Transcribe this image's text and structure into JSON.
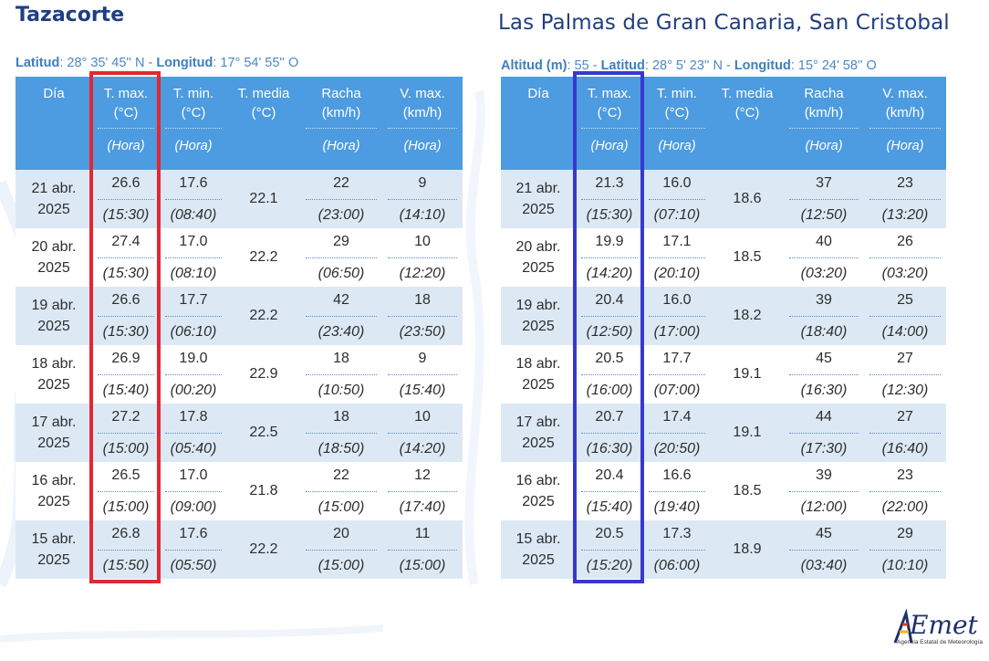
{
  "colors": {
    "title": "#1e3f82",
    "header_bg": "#4d9be0",
    "row_alt_bg": "#dce9f5",
    "highlight_left": "#e32733",
    "highlight_right": "#3838cf"
  },
  "header_labels": {
    "dia": "Día",
    "tmax_1": "T. max.",
    "tmax_2": "(°C)",
    "tmin_1": "T. min.",
    "tmin_2": "(°C)",
    "tmed_1": "T. media",
    "tmed_2": "(°C)",
    "racha_1": "Racha",
    "racha_2": "(km/h)",
    "vmax_1": "V. max.",
    "vmax_2": "(km/h)",
    "hora": "(Hora)"
  },
  "stations": [
    {
      "name": "Tazacorte",
      "coords_lat_label": "Latitud",
      "coords_lat": ": 28° 35' 45'' N - ",
      "coords_lon_label": "Longitud",
      "coords_lon": ": 17° 54' 55'' O",
      "rows": [
        {
          "dia1": "21 abr.",
          "dia2": "2025",
          "tmax": "26.6",
          "tmax_h": "(15:30)",
          "tmin": "17.6",
          "tmin_h": "(08:40)",
          "tmed": "22.1",
          "racha": "22",
          "racha_h": "(23:00)",
          "vmax": "9",
          "vmax_h": "(14:10)"
        },
        {
          "dia1": "20 abr.",
          "dia2": "2025",
          "tmax": "27.4",
          "tmax_h": "(15:30)",
          "tmin": "17.0",
          "tmin_h": "(08:10)",
          "tmed": "22.2",
          "racha": "29",
          "racha_h": "(06:50)",
          "vmax": "10",
          "vmax_h": "(12:20)"
        },
        {
          "dia1": "19 abr.",
          "dia2": "2025",
          "tmax": "26.6",
          "tmax_h": "(15:30)",
          "tmin": "17.7",
          "tmin_h": "(06:10)",
          "tmed": "22.2",
          "racha": "42",
          "racha_h": "(23:40)",
          "vmax": "18",
          "vmax_h": "(23:50)"
        },
        {
          "dia1": "18 abr.",
          "dia2": "2025",
          "tmax": "26.9",
          "tmax_h": "(15:40)",
          "tmin": "19.0",
          "tmin_h": "(00:20)",
          "tmed": "22.9",
          "racha": "18",
          "racha_h": "(10:50)",
          "vmax": "9",
          "vmax_h": "(15:40)"
        },
        {
          "dia1": "17 abr.",
          "dia2": "2025",
          "tmax": "27.2",
          "tmax_h": "(15:00)",
          "tmin": "17.8",
          "tmin_h": "(05:40)",
          "tmed": "22.5",
          "racha": "18",
          "racha_h": "(18:50)",
          "vmax": "10",
          "vmax_h": "(14:20)"
        },
        {
          "dia1": "16 abr.",
          "dia2": "2025",
          "tmax": "26.5",
          "tmax_h": "(15:00)",
          "tmin": "17.0",
          "tmin_h": "(09:00)",
          "tmed": "21.8",
          "racha": "22",
          "racha_h": "(15:00)",
          "vmax": "12",
          "vmax_h": "(17:40)"
        },
        {
          "dia1": "15 abr.",
          "dia2": "2025",
          "tmax": "26.8",
          "tmax_h": "(15:50)",
          "tmin": "17.6",
          "tmin_h": "(05:50)",
          "tmed": "22.2",
          "racha": "20",
          "racha_h": "(15:00)",
          "vmax": "11",
          "vmax_h": "(15:00)"
        }
      ]
    },
    {
      "name": "Las Palmas de Gran Canaria, San Cristobal",
      "coords_alt_label": "Altitud (m)",
      "coords_alt": ": 55 - ",
      "coords_lat_label": "Latitud",
      "coords_lat": ": 28° 5' 23'' N - ",
      "coords_lon_label": "Longitud",
      "coords_lon": ": 15° 24' 58'' O",
      "rows": [
        {
          "dia1": "21 abr.",
          "dia2": "2025",
          "tmax": "21.3",
          "tmax_h": "(15:30)",
          "tmin": "16.0",
          "tmin_h": "(07:10)",
          "tmed": "18.6",
          "racha": "37",
          "racha_h": "(12:50)",
          "vmax": "23",
          "vmax_h": "(13:20)"
        },
        {
          "dia1": "20 abr.",
          "dia2": "2025",
          "tmax": "19.9",
          "tmax_h": "(14:20)",
          "tmin": "17.1",
          "tmin_h": "(20:10)",
          "tmed": "18.5",
          "racha": "40",
          "racha_h": "(03:20)",
          "vmax": "26",
          "vmax_h": "(03:20)"
        },
        {
          "dia1": "19 abr.",
          "dia2": "2025",
          "tmax": "20.4",
          "tmax_h": "(12:50)",
          "tmin": "16.0",
          "tmin_h": "(17:00)",
          "tmed": "18.2",
          "racha": "39",
          "racha_h": "(18:40)",
          "vmax": "25",
          "vmax_h": "(14:00)"
        },
        {
          "dia1": "18 abr.",
          "dia2": "2025",
          "tmax": "20.5",
          "tmax_h": "(16:00)",
          "tmin": "17.7",
          "tmin_h": "(07:00)",
          "tmed": "19.1",
          "racha": "45",
          "racha_h": "(16:30)",
          "vmax": "27",
          "vmax_h": "(12:30)"
        },
        {
          "dia1": "17 abr.",
          "dia2": "2025",
          "tmax": "20.7",
          "tmax_h": "(16:30)",
          "tmin": "17.4",
          "tmin_h": "(20:50)",
          "tmed": "19.1",
          "racha": "44",
          "racha_h": "(17:30)",
          "vmax": "27",
          "vmax_h": "(16:40)"
        },
        {
          "dia1": "16 abr.",
          "dia2": "2025",
          "tmax": "20.4",
          "tmax_h": "(15:40)",
          "tmin": "16.6",
          "tmin_h": "(19:40)",
          "tmed": "18.5",
          "racha": "39",
          "racha_h": "(12:00)",
          "vmax": "23",
          "vmax_h": "(22:00)"
        },
        {
          "dia1": "15 abr.",
          "dia2": "2025",
          "tmax": "20.5",
          "tmax_h": "(15:20)",
          "tmin": "17.3",
          "tmin_h": "(06:00)",
          "tmed": "18.9",
          "racha": "45",
          "racha_h": "(03:40)",
          "vmax": "29",
          "vmax_h": "(10:10)"
        }
      ]
    }
  ],
  "logo": {
    "text": "AEmet",
    "subtitle": "Agencia Estatal de Meteorología"
  }
}
